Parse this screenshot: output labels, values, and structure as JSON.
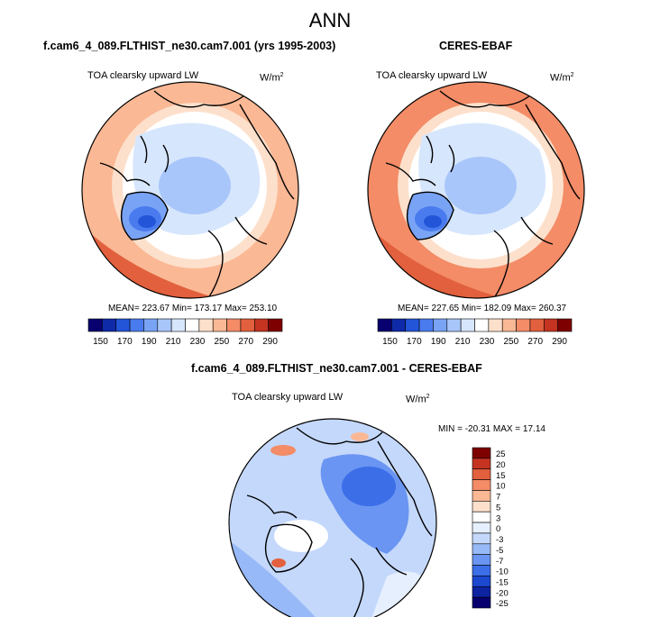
{
  "title": "ANN",
  "colors": {
    "coast": "#000000",
    "palette_abs": [
      "#08006e",
      "#0f2aa8",
      "#2255d8",
      "#4a7bee",
      "#79a3f5",
      "#a8c6fa",
      "#d6e6fc",
      "#ffffff",
      "#fde0cb",
      "#fbb895",
      "#f38c67",
      "#e2603d",
      "#c43421",
      "#7e0000"
    ],
    "palette_diff": [
      "#08006e",
      "#0d23a0",
      "#1c48d0",
      "#3c6ee8",
      "#6a95f2",
      "#98b9f7",
      "#c4d8fb",
      "#e6effd",
      "#ffffff",
      "#fde0cb",
      "#fbb895",
      "#f38c67",
      "#e2603d",
      "#c43421",
      "#7e0000"
    ]
  },
  "chart_data": [
    {
      "type": "heatmap",
      "projection": "north polar stereographic",
      "title": "f.cam6_4_089.FLTHIST_ne30.cam7.001 (yrs 1995-2003)",
      "variable": "TOA clearsky upward LW",
      "units_base": "W/m",
      "units_exp": "2",
      "stats": "MEAN= 223.67  Min= 173.17  Max= 253.10",
      "mean": 223.67,
      "min": 173.17,
      "max": 253.1,
      "colorbar_ticks": [
        "150",
        "170",
        "190",
        "210",
        "230",
        "250",
        "270",
        "290"
      ]
    },
    {
      "type": "heatmap",
      "projection": "north polar stereographic",
      "title": "CERES-EBAF",
      "variable": "TOA clearsky upward LW",
      "units_base": "W/m",
      "units_exp": "2",
      "stats": "MEAN= 227.65  Min= 182.09  Max= 260.37",
      "mean": 227.65,
      "min": 182.09,
      "max": 260.37,
      "colorbar_ticks": [
        "150",
        "170",
        "190",
        "210",
        "230",
        "250",
        "270",
        "290"
      ]
    },
    {
      "type": "heatmap",
      "projection": "north polar stereographic",
      "title": "f.cam6_4_089.FLTHIST_ne30.cam7.001 - CERES-EBAF",
      "variable": "TOA clearsky upward LW",
      "units_base": "W/m",
      "units_exp": "2",
      "stats": "MIN = -20.31 MAX =  17.14",
      "min": -20.31,
      "max": 17.14,
      "colorbar_ticks": [
        "25",
        "20",
        "15",
        "10",
        "7",
        "5",
        "3",
        "0",
        "-3",
        "-5",
        "-7",
        "-10",
        "-15",
        "-20",
        "-25"
      ]
    }
  ]
}
